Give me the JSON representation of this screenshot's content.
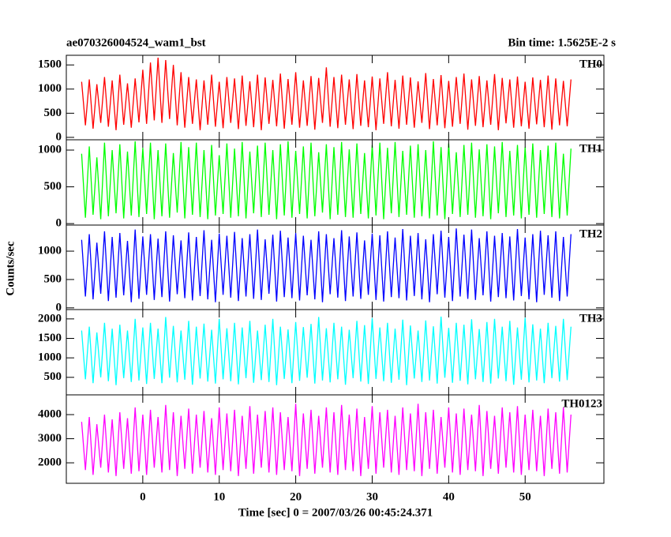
{
  "chart_data": {
    "type": "line",
    "title": "ae070326004524_wam1_bst",
    "subtitle": "Bin time: 1.5625E-2 s",
    "x_label": "Time [sec] 0 = 2007/03/26 00:45:24.371",
    "y_label": "Counts/sec",
    "xlim": [
      -10,
      60.3
    ],
    "xticks": [
      0,
      10,
      20,
      30,
      40,
      50
    ],
    "x": [
      -8,
      -7.5,
      -7,
      -6.5,
      -6,
      -5.5,
      -5,
      -4.5,
      -4,
      -3.5,
      -3,
      -2.5,
      -2,
      -1.5,
      -1,
      -0.5,
      0,
      0.5,
      1,
      1.5,
      2,
      2.5,
      3,
      3.5,
      4,
      4.5,
      5,
      5.5,
      6,
      6.5,
      7,
      7.5,
      8,
      8.5,
      9,
      9.5,
      10,
      10.5,
      11,
      11.5,
      12,
      12.5,
      13,
      13.5,
      14,
      14.5,
      15,
      15.5,
      16,
      16.5,
      17,
      17.5,
      18,
      18.5,
      19,
      19.5,
      20,
      20.5,
      21,
      21.5,
      22,
      22.5,
      23,
      23.5,
      24,
      24.5,
      25,
      25.5,
      26,
      26.5,
      27,
      27.5,
      28,
      28.5,
      29,
      29.5,
      30,
      30.5,
      31,
      31.5,
      32,
      32.5,
      33,
      33.5,
      34,
      34.5,
      35,
      35.5,
      36,
      36.5,
      37,
      37.5,
      38,
      38.5,
      39,
      39.5,
      40,
      40.5,
      41,
      41.5,
      42,
      42.5,
      43,
      43.5,
      44,
      44.5,
      45,
      45.5,
      46,
      46.5,
      47,
      47.5,
      48,
      48.5,
      49,
      49.5,
      50,
      50.5,
      51,
      51.5,
      52,
      52.5,
      53,
      53.5,
      54,
      54.5,
      55,
      55.5,
      56
    ],
    "series": [
      {
        "name": "TH0",
        "color": "#ff0000",
        "ylim": [
          -50,
          1700
        ],
        "yticks": [
          0,
          500,
          1000,
          1500
        ],
        "values": [
          1150,
          250,
          1200,
          180,
          1100,
          300,
          1250,
          220,
          1180,
          150,
          1300,
          260,
          1120,
          200,
          1220,
          310,
          1400,
          280,
          1550,
          350,
          1650,
          300,
          1600,
          380,
          1500,
          250,
          1350,
          200,
          1250,
          280,
          1200,
          150,
          1180,
          260,
          1300,
          220,
          1150,
          190,
          1250,
          300,
          1220,
          170,
          1280,
          240,
          1160,
          210,
          1300,
          150,
          1240,
          280,
          1190,
          230,
          1320,
          180,
          1210,
          260,
          1350,
          200,
          1180,
          240,
          1270,
          160,
          1230,
          300,
          1450,
          220,
          1250,
          190,
          1300,
          260,
          1200,
          170,
          1310,
          240,
          1180,
          210,
          1260,
          150,
          1220,
          280,
          1350,
          230,
          1190,
          180,
          1280,
          260,
          1240,
          200,
          1160,
          300,
          1330,
          170,
          1210,
          250,
          1290,
          190,
          1170,
          220,
          1250,
          280,
          1320,
          160,
          1200,
          240,
          1270,
          210,
          1180,
          260,
          1310,
          150,
          1230,
          290,
          1200,
          200,
          1260,
          230,
          1150,
          180,
          1240,
          270,
          1190,
          210,
          1280,
          160,
          1220,
          250,
          1170,
          230,
          1200
        ]
      },
      {
        "name": "TH1",
        "color": "#00ff00",
        "ylim": [
          -20,
          1140
        ],
        "yticks": [
          0,
          500,
          1000
        ],
        "values": [
          950,
          80,
          1050,
          120,
          900,
          60,
          1100,
          100,
          1000,
          140,
          1080,
          70,
          980,
          110,
          1120,
          90,
          1030,
          130,
          1100,
          60,
          1000,
          100,
          1090,
          80,
          960,
          150,
          1110,
          70,
          1040,
          120,
          1100,
          90,
          1000,
          60,
          1070,
          110,
          930,
          130,
          1090,
          80,
          1020,
          100,
          1110,
          70,
          980,
          140,
          1060,
          90,
          1100,
          120,
          1000,
          60,
          1080,
          110,
          1120,
          80,
          990,
          130,
          1050,
          70,
          1100,
          100,
          970,
          150,
          1080,
          60,
          1040,
          120,
          1110,
          90,
          1010,
          80,
          1090,
          130,
          960,
          70,
          1070,
          110,
          1100,
          60,
          1030,
          140,
          1110,
          90,
          990,
          120,
          1060,
          80,
          1080,
          100,
          1000,
          70,
          1120,
          110,
          1040,
          60,
          1090,
          130,
          970,
          90,
          1070,
          120,
          1100,
          80,
          1010,
          100,
          1080,
          60,
          1050,
          140,
          1110,
          90,
          990,
          110,
          1070,
          70,
          1040,
          120,
          1090,
          80,
          1000,
          130,
          1060,
          90,
          1100,
          70,
          950,
          110,
          1020
        ]
      },
      {
        "name": "TH2",
        "color": "#0000ff",
        "ylim": [
          -30,
          1460
        ],
        "yticks": [
          0,
          500,
          1000
        ],
        "values": [
          1200,
          200,
          1300,
          150,
          1150,
          250,
          1350,
          120,
          1250,
          180,
          1320,
          220,
          1180,
          100,
          1380,
          160,
          1260,
          230,
          1300,
          140,
          1220,
          190,
          1350,
          110,
          1280,
          240,
          1190,
          170,
          1330,
          130,
          1250,
          210,
          1370,
          150,
          1200,
          100,
          1310,
          230,
          1270,
          180,
          1340,
          120,
          1230,
          200,
          1300,
          160,
          1380,
          140,
          1210,
          250,
          1290,
          110,
          1360,
          190,
          1240,
          170,
          1320,
          130,
          1270,
          220,
          1200,
          150,
          1350,
          100,
          1300,
          240,
          1230,
          180,
          1370,
          120,
          1260,
          200,
          1330,
          160,
          1190,
          230,
          1310,
          140,
          1280,
          110,
          1350,
          190,
          1240,
          170,
          1390,
          130,
          1270,
          210,
          1320,
          150,
          1210,
          100,
          1300,
          240,
          1360,
          180,
          1250,
          120,
          1400,
          200,
          1290,
          160,
          1380,
          140,
          1230,
          220,
          1350,
          110,
          1270,
          190,
          1320,
          170,
          1260,
          130,
          1390,
          210,
          1240,
          150,
          1300,
          100,
          1360,
          230,
          1280,
          180,
          1350,
          120,
          1250,
          200,
          1300
        ]
      },
      {
        "name": "TH3",
        "color": "#00ffff",
        "ylim": [
          50,
          2240
        ],
        "yticks": [
          500,
          1000,
          1500,
          2000
        ],
        "values": [
          1700,
          450,
          1800,
          350,
          1650,
          500,
          1900,
          400,
          1750,
          300,
          1850,
          480,
          1700,
          380,
          2000,
          420,
          1780,
          330,
          1900,
          460,
          1750,
          350,
          2050,
          490,
          1820,
          370,
          1700,
          440,
          1950,
          310,
          1800,
          470,
          1880,
          390,
          1720,
          340,
          2000,
          450,
          1760,
          400,
          1900,
          320,
          1780,
          480,
          1950,
          360,
          1700,
          430,
          1850,
          380,
          2000,
          300,
          1800,
          460,
          1730,
          350,
          1920,
          410,
          1790,
          490,
          1870,
          340,
          2050,
          420,
          1760,
          370,
          1900,
          450,
          1800,
          310,
          1720,
          480,
          1950,
          390,
          1840,
          330,
          2020,
          460,
          1780,
          400,
          1900,
          360,
          1750,
          440,
          1980,
          300,
          1830,
          470,
          1700,
          380,
          1960,
          420,
          1810,
          340,
          2060,
          490,
          1770,
          360,
          1900,
          410,
          1850,
          320,
          1990,
          450,
          1740,
          380,
          1920,
          340,
          2000,
          470,
          1800,
          400,
          1950,
          310,
          1780,
          440,
          2030,
          370,
          1860,
          420,
          1750,
          350,
          1900,
          480,
          1820,
          390,
          2000,
          430,
          1800
        ]
      },
      {
        "name": "TH0123",
        "color": "#ff00ff",
        "ylim": [
          1150,
          4820
        ],
        "yticks": [
          2000,
          3000,
          4000
        ],
        "values": [
          3700,
          1700,
          3900,
          1500,
          3600,
          1800,
          4000,
          1600,
          3800,
          1450,
          4100,
          1750,
          3850,
          1550,
          4300,
          1650,
          4000,
          1500,
          4200,
          1800,
          3900,
          1600,
          4400,
          1700,
          4100,
          1450,
          3950,
          1750,
          4250,
          1550,
          4000,
          1800,
          4150,
          1600,
          3850,
          1500,
          4300,
          1700,
          4050,
          1650,
          4200,
          1450,
          3950,
          1750,
          4350,
          1550,
          4000,
          1800,
          4150,
          1600,
          4300,
          1500,
          4100,
          1700,
          3900,
          1650,
          4450,
          1450,
          4050,
          1750,
          4200,
          1550,
          3950,
          1800,
          4300,
          1600,
          4100,
          1500,
          4400,
          1700,
          4000,
          1650,
          4250,
          1450,
          3900,
          1750,
          4350,
          1550,
          4100,
          1800,
          4200,
          1600,
          3950,
          1500,
          4300,
          1700,
          4050,
          1650,
          4450,
          1450,
          4100,
          1750,
          4200,
          1550,
          3900,
          1800,
          4300,
          1600,
          4050,
          1500,
          4250,
          1700,
          4000,
          1650,
          4400,
          1450,
          4150,
          1750,
          3950,
          1550,
          4300,
          1800,
          4100,
          1600,
          4350,
          1500,
          4000,
          1700,
          4200,
          1650,
          3950,
          1450,
          4250,
          1750,
          4100,
          1550,
          4300,
          1600,
          4000
        ]
      }
    ]
  }
}
